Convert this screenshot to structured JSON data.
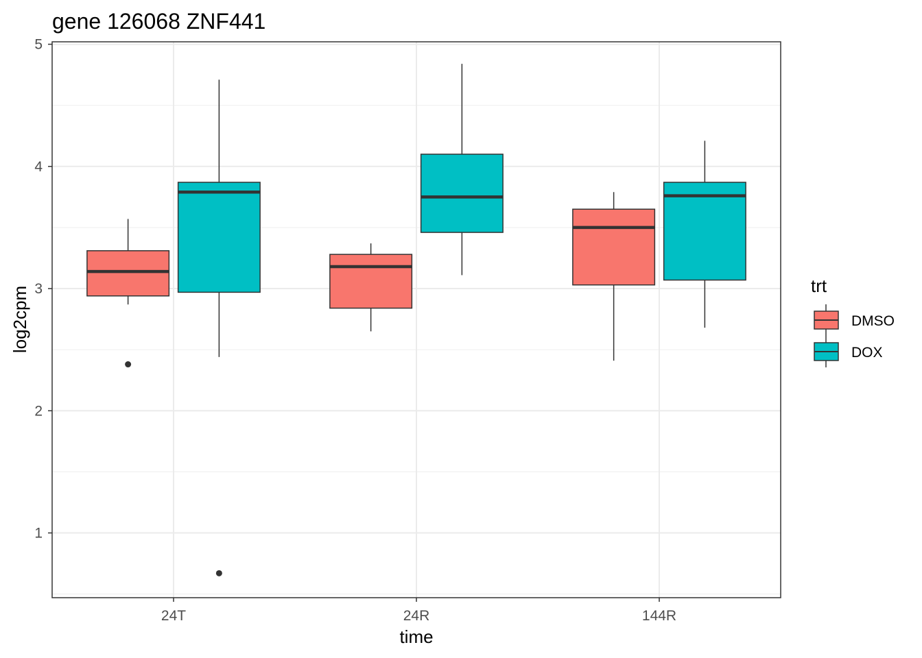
{
  "chart_data": {
    "type": "boxplot",
    "title": "gene 126068 ZNF441",
    "xlabel": "time",
    "ylabel": "log2cpm",
    "categories": [
      "24T",
      "24R",
      "144R"
    ],
    "ylim": [
      0.47,
      5.02
    ],
    "yticks": [
      1,
      2,
      3,
      4,
      5
    ],
    "grid": true,
    "legend": {
      "title": "trt",
      "position": "right"
    },
    "series": [
      {
        "name": "DMSO",
        "color": "#F8766D",
        "boxes": [
          {
            "whisker_low": 2.87,
            "q1": 2.94,
            "median": 3.14,
            "q3": 3.31,
            "whisker_high": 3.57,
            "outliers": [
              2.38
            ]
          },
          {
            "whisker_low": 2.65,
            "q1": 2.84,
            "median": 3.18,
            "q3": 3.28,
            "whisker_high": 3.37,
            "outliers": []
          },
          {
            "whisker_low": 2.41,
            "q1": 3.03,
            "median": 3.5,
            "q3": 3.65,
            "whisker_high": 3.79,
            "outliers": []
          }
        ]
      },
      {
        "name": "DOX",
        "color": "#00BFC4",
        "boxes": [
          {
            "whisker_low": 2.44,
            "q1": 2.97,
            "median": 3.79,
            "q3": 3.87,
            "whisker_high": 4.71,
            "outliers": [
              0.67
            ]
          },
          {
            "whisker_low": 3.11,
            "q1": 3.46,
            "median": 3.75,
            "q3": 4.1,
            "whisker_high": 4.84,
            "outliers": []
          },
          {
            "whisker_low": 2.68,
            "q1": 3.07,
            "median": 3.76,
            "q3": 3.87,
            "whisker_high": 4.21,
            "outliers": []
          }
        ]
      }
    ]
  }
}
